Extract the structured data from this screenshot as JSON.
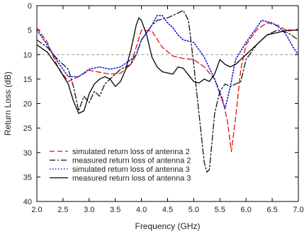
{
  "chart_data": {
    "type": "line",
    "title": "",
    "xlabel": "Frequency (GHz)",
    "ylabel": "Return Loss (dB)",
    "xlim": [
      2.0,
      7.0
    ],
    "ylim": [
      0,
      40
    ],
    "y_inverted": true,
    "xticks": [
      "2.0",
      "2.5",
      "3.0",
      "3.5",
      "4.0",
      "4.5",
      "5.0",
      "5.5",
      "6.0",
      "6.5",
      "7.0"
    ],
    "xtick_values": [
      2.0,
      2.5,
      3.0,
      3.5,
      4.0,
      4.5,
      5.0,
      5.5,
      6.0,
      6.5,
      7.0
    ],
    "yticks": [
      "0",
      "5",
      "10",
      "15",
      "20",
      "25",
      "30",
      "35",
      "40"
    ],
    "ytick_values": [
      0,
      5,
      10,
      15,
      20,
      25,
      30,
      35,
      40
    ],
    "grid": false,
    "legend_position": "bottom-left",
    "reference_line": {
      "y": 10,
      "color": "#999999",
      "style": "dashed"
    },
    "series": [
      {
        "name": "simulated return loss of antenna 2",
        "color": "#e01010",
        "style": "dashed",
        "points": [
          [
            2.0,
            4.5
          ],
          [
            2.2,
            7.5
          ],
          [
            2.4,
            12.5
          ],
          [
            2.6,
            15.5
          ],
          [
            2.8,
            14.5
          ],
          [
            3.0,
            13.2
          ],
          [
            3.2,
            13.6
          ],
          [
            3.4,
            14.0
          ],
          [
            3.6,
            13.8
          ],
          [
            3.8,
            12.0
          ],
          [
            4.0,
            5.0
          ],
          [
            4.2,
            5.2
          ],
          [
            4.4,
            8.5
          ],
          [
            4.6,
            10.3
          ],
          [
            4.8,
            10.8
          ],
          [
            5.0,
            11.0
          ],
          [
            5.2,
            12.5
          ],
          [
            5.4,
            15.0
          ],
          [
            5.55,
            19.0
          ],
          [
            5.65,
            24.0
          ],
          [
            5.72,
            29.8
          ],
          [
            5.8,
            23.0
          ],
          [
            5.9,
            13.0
          ],
          [
            6.0,
            8.0
          ],
          [
            6.2,
            5.0
          ],
          [
            6.4,
            3.5
          ],
          [
            6.6,
            4.0
          ],
          [
            6.8,
            5.2
          ],
          [
            7.0,
            4.8
          ]
        ]
      },
      {
        "name": "measured return loss of antenna 2",
        "color": "#111111",
        "style": "dashdot",
        "points": [
          [
            2.0,
            7.0
          ],
          [
            2.2,
            8.5
          ],
          [
            2.4,
            11.0
          ],
          [
            2.6,
            13.0
          ],
          [
            2.7,
            16.5
          ],
          [
            2.8,
            21.5
          ],
          [
            2.9,
            18.5
          ],
          [
            3.0,
            19.8
          ],
          [
            3.1,
            17.5
          ],
          [
            3.2,
            18.5
          ],
          [
            3.3,
            16.0
          ],
          [
            3.4,
            15.0
          ],
          [
            3.6,
            13.0
          ],
          [
            3.8,
            12.0
          ],
          [
            3.9,
            10.0
          ],
          [
            4.0,
            7.0
          ],
          [
            4.1,
            5.5
          ],
          [
            4.2,
            4.0
          ],
          [
            4.3,
            3.0
          ],
          [
            4.5,
            2.5
          ],
          [
            4.6,
            2.0
          ],
          [
            4.7,
            1.5
          ],
          [
            4.8,
            1.0
          ],
          [
            4.9,
            3.0
          ],
          [
            5.0,
            12.0
          ],
          [
            5.1,
            22.0
          ],
          [
            5.2,
            32.0
          ],
          [
            5.25,
            34.0
          ],
          [
            5.3,
            33.5
          ],
          [
            5.4,
            22.0
          ],
          [
            5.5,
            17.5
          ],
          [
            5.6,
            16.0
          ],
          [
            5.7,
            16.5
          ],
          [
            5.8,
            16.0
          ],
          [
            5.9,
            15.5
          ],
          [
            6.0,
            11.0
          ],
          [
            6.2,
            8.0
          ],
          [
            6.4,
            6.0
          ],
          [
            6.6,
            5.0
          ],
          [
            6.8,
            5.5
          ],
          [
            7.0,
            7.0
          ]
        ]
      },
      {
        "name": "simulated return loss of antenna 3",
        "color": "#1a1ad0",
        "style": "dotted",
        "points": [
          [
            2.0,
            5.0
          ],
          [
            2.2,
            8.0
          ],
          [
            2.4,
            11.5
          ],
          [
            2.6,
            14.5
          ],
          [
            2.8,
            14.5
          ],
          [
            3.0,
            13.0
          ],
          [
            3.2,
            12.5
          ],
          [
            3.4,
            13.0
          ],
          [
            3.6,
            12.5
          ],
          [
            3.8,
            11.0
          ],
          [
            3.9,
            10.0
          ],
          [
            4.0,
            7.0
          ],
          [
            4.2,
            4.0
          ],
          [
            4.3,
            2.0
          ],
          [
            4.4,
            2.0
          ],
          [
            4.5,
            3.5
          ],
          [
            4.6,
            4.5
          ],
          [
            4.7,
            6.0
          ],
          [
            4.8,
            7.0
          ],
          [
            5.0,
            7.5
          ],
          [
            5.2,
            10.5
          ],
          [
            5.4,
            15.0
          ],
          [
            5.5,
            18.0
          ],
          [
            5.6,
            21.0
          ],
          [
            5.7,
            16.5
          ],
          [
            5.8,
            11.0
          ],
          [
            6.0,
            7.5
          ],
          [
            6.2,
            4.5
          ],
          [
            6.3,
            3.0
          ],
          [
            6.5,
            3.5
          ],
          [
            6.7,
            5.0
          ],
          [
            6.8,
            6.5
          ],
          [
            6.9,
            8.5
          ],
          [
            7.0,
            10.0
          ]
        ]
      },
      {
        "name": "measured return loss of antenna 3",
        "color": "#000000",
        "style": "solid",
        "points": [
          [
            2.0,
            8.0
          ],
          [
            2.2,
            9.5
          ],
          [
            2.4,
            12.5
          ],
          [
            2.6,
            16.0
          ],
          [
            2.7,
            19.5
          ],
          [
            2.8,
            22.0
          ],
          [
            2.9,
            21.5
          ],
          [
            3.0,
            18.0
          ],
          [
            3.1,
            16.0
          ],
          [
            3.2,
            15.0
          ],
          [
            3.3,
            14.5
          ],
          [
            3.4,
            15.0
          ],
          [
            3.5,
            16.5
          ],
          [
            3.6,
            15.5
          ],
          [
            3.7,
            13.0
          ],
          [
            3.8,
            9.0
          ],
          [
            3.9,
            4.0
          ],
          [
            3.95,
            2.5
          ],
          [
            4.0,
            3.0
          ],
          [
            4.1,
            6.0
          ],
          [
            4.2,
            10.5
          ],
          [
            4.3,
            12.5
          ],
          [
            4.4,
            13.5
          ],
          [
            4.6,
            14.0
          ],
          [
            4.7,
            12.5
          ],
          [
            4.8,
            12.8
          ],
          [
            5.0,
            15.5
          ],
          [
            5.1,
            15.8
          ],
          [
            5.2,
            15.0
          ],
          [
            5.3,
            15.5
          ],
          [
            5.4,
            14.0
          ],
          [
            5.5,
            11.0
          ],
          [
            5.6,
            12.0
          ],
          [
            5.7,
            12.5
          ],
          [
            5.8,
            12.0
          ],
          [
            5.9,
            11.0
          ],
          [
            6.0,
            10.0
          ],
          [
            6.2,
            8.0
          ],
          [
            6.4,
            6.0
          ],
          [
            6.6,
            5.5
          ],
          [
            6.8,
            5.0
          ],
          [
            7.0,
            5.0
          ]
        ]
      }
    ]
  }
}
